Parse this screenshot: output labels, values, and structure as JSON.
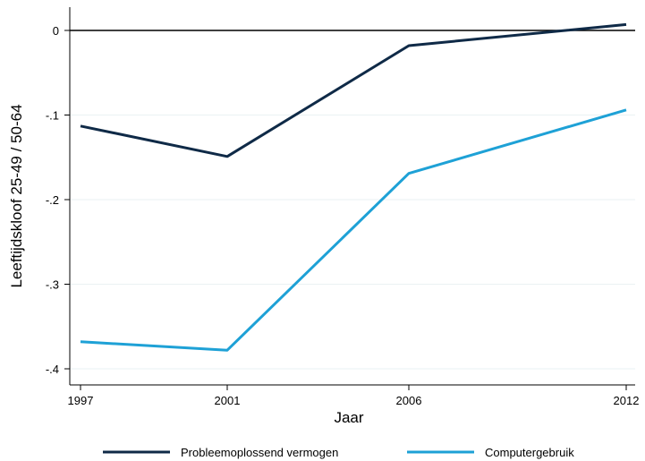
{
  "chart_data": {
    "type": "line",
    "x": [
      1997,
      2001,
      2006,
      2012
    ],
    "xlabel": "Jaar",
    "ylabel": "Leeftijdskloof 25-49 / 50-64",
    "ylim": [
      -0.42,
      0.02
    ],
    "xlim": [
      1997,
      2012
    ],
    "yticks": [
      0,
      -0.1,
      -0.2,
      -0.3,
      -0.4
    ],
    "ytick_labels": [
      "0",
      "-.1",
      "-.2",
      "-.3",
      "-.4"
    ],
    "xtick_labels": [
      "1997",
      "2001",
      "2006",
      "2012"
    ],
    "reference_line_y": 0,
    "grid": true,
    "legend_position": "bottom",
    "series": [
      {
        "name": "Probleemoplossend vermogen",
        "color": "#0f2a47",
        "values": [
          -0.113,
          -0.149,
          -0.018,
          0.007
        ]
      },
      {
        "name": "Computergebruik",
        "color": "#1ea1d6",
        "values": [
          -0.368,
          -0.378,
          -0.169,
          -0.094
        ]
      }
    ]
  }
}
